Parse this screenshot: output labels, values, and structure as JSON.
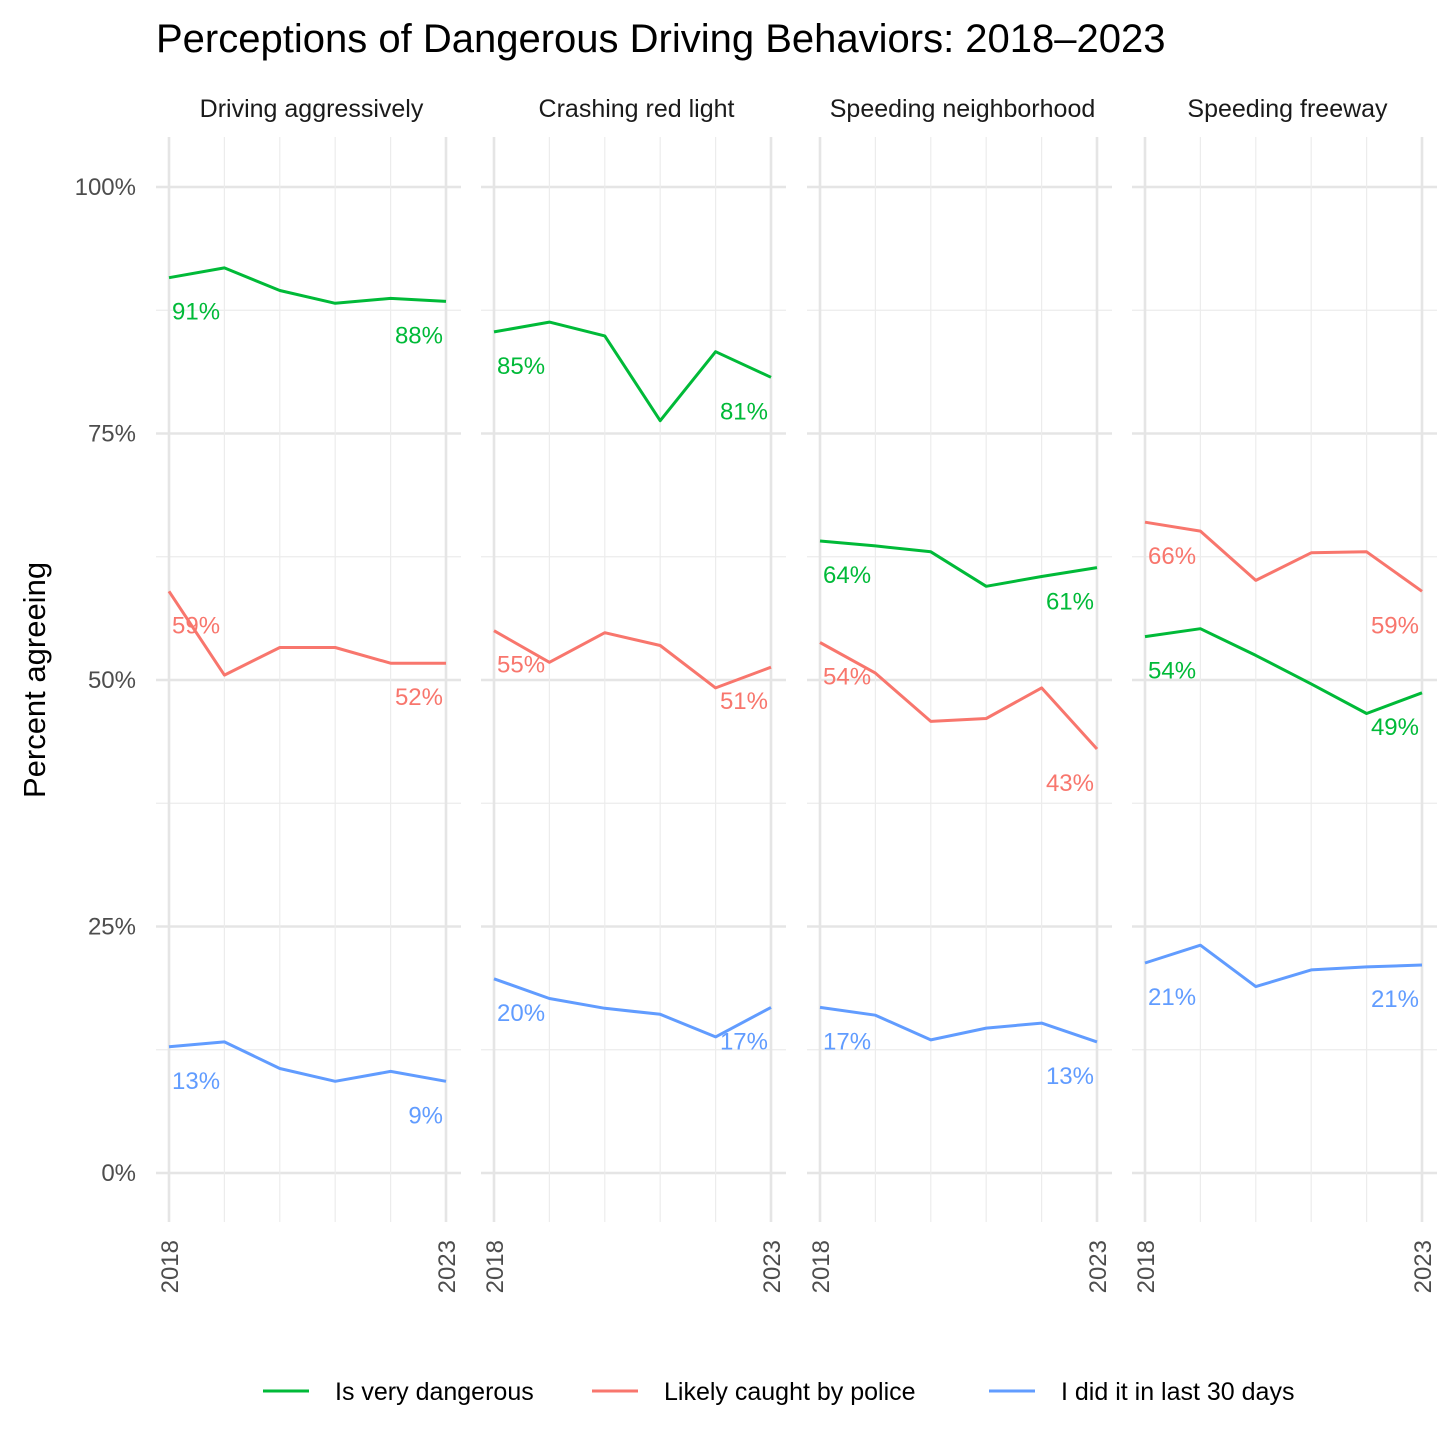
{
  "chart_data": {
    "type": "line",
    "title": "Perceptions of Dangerous Driving Behaviors: 2018–2023",
    "ylabel": "Percent agreeing",
    "xlabel": "",
    "x": [
      2018,
      2019,
      2020,
      2021,
      2022,
      2023
    ],
    "x_tick_labels": [
      "2018",
      "2023"
    ],
    "ylim": [
      0,
      100
    ],
    "y_ticks": [
      "0%",
      "25%",
      "50%",
      "75%",
      "100%"
    ],
    "grid": true,
    "legend_position": "bottom",
    "series_meta": [
      {
        "key": "danger",
        "name": "Is very dangerous",
        "color": "#00BA38"
      },
      {
        "key": "police",
        "name": "Likely caught by police",
        "color": "#F8766D"
      },
      {
        "key": "did",
        "name": "I did it in last 30 days",
        "color": "#619CFF"
      }
    ],
    "panels": [
      {
        "title": "Driving aggressively",
        "series": [
          {
            "key": "danger",
            "values": [
              90.8,
              91.8,
              89.5,
              88.2,
              88.7,
              88.4
            ],
            "labels": [
              "91%",
              "88%"
            ]
          },
          {
            "key": "police",
            "values": [
              59.0,
              50.5,
              53.3,
              53.3,
              51.7,
              51.7
            ],
            "labels": [
              "59%",
              "52%"
            ]
          },
          {
            "key": "did",
            "values": [
              12.8,
              13.3,
              10.6,
              9.3,
              10.3,
              9.3
            ],
            "labels": [
              "13%",
              "9%"
            ]
          }
        ]
      },
      {
        "title": "Crashing red light",
        "series": [
          {
            "key": "danger",
            "values": [
              85.3,
              86.3,
              84.9,
              76.3,
              83.3,
              80.7
            ],
            "labels": [
              "85%",
              "81%"
            ]
          },
          {
            "key": "police",
            "values": [
              55.0,
              51.8,
              54.8,
              53.5,
              49.2,
              51.3
            ],
            "labels": [
              "55%",
              "51%"
            ]
          },
          {
            "key": "did",
            "values": [
              19.7,
              17.7,
              16.7,
              16.1,
              13.8,
              16.8
            ],
            "labels": [
              "20%",
              "17%"
            ]
          }
        ]
      },
      {
        "title": "Speeding neighborhood",
        "series": [
          {
            "key": "danger",
            "values": [
              64.1,
              63.6,
              63.0,
              59.5,
              60.5,
              61.4
            ],
            "labels": [
              "64%",
              "61%"
            ]
          },
          {
            "key": "police",
            "values": [
              53.8,
              50.7,
              45.8,
              46.1,
              49.2,
              43.0
            ],
            "labels": [
              "54%",
              "43%"
            ]
          },
          {
            "key": "did",
            "values": [
              16.8,
              16.0,
              13.5,
              14.7,
              15.2,
              13.3
            ],
            "labels": [
              "17%",
              "13%"
            ]
          }
        ]
      },
      {
        "title": "Speeding freeway",
        "series": [
          {
            "key": "danger",
            "values": [
              54.4,
              55.2,
              52.5,
              49.6,
              46.6,
              48.7
            ],
            "labels": [
              "54%",
              "49%"
            ]
          },
          {
            "key": "police",
            "values": [
              66.0,
              65.1,
              60.1,
              62.9,
              63.0,
              59.0
            ],
            "labels": [
              "66%",
              "59%"
            ]
          },
          {
            "key": "did",
            "values": [
              21.3,
              23.1,
              18.9,
              20.6,
              20.9,
              21.1
            ],
            "labels": [
              "21%",
              "21%"
            ]
          }
        ]
      }
    ]
  }
}
